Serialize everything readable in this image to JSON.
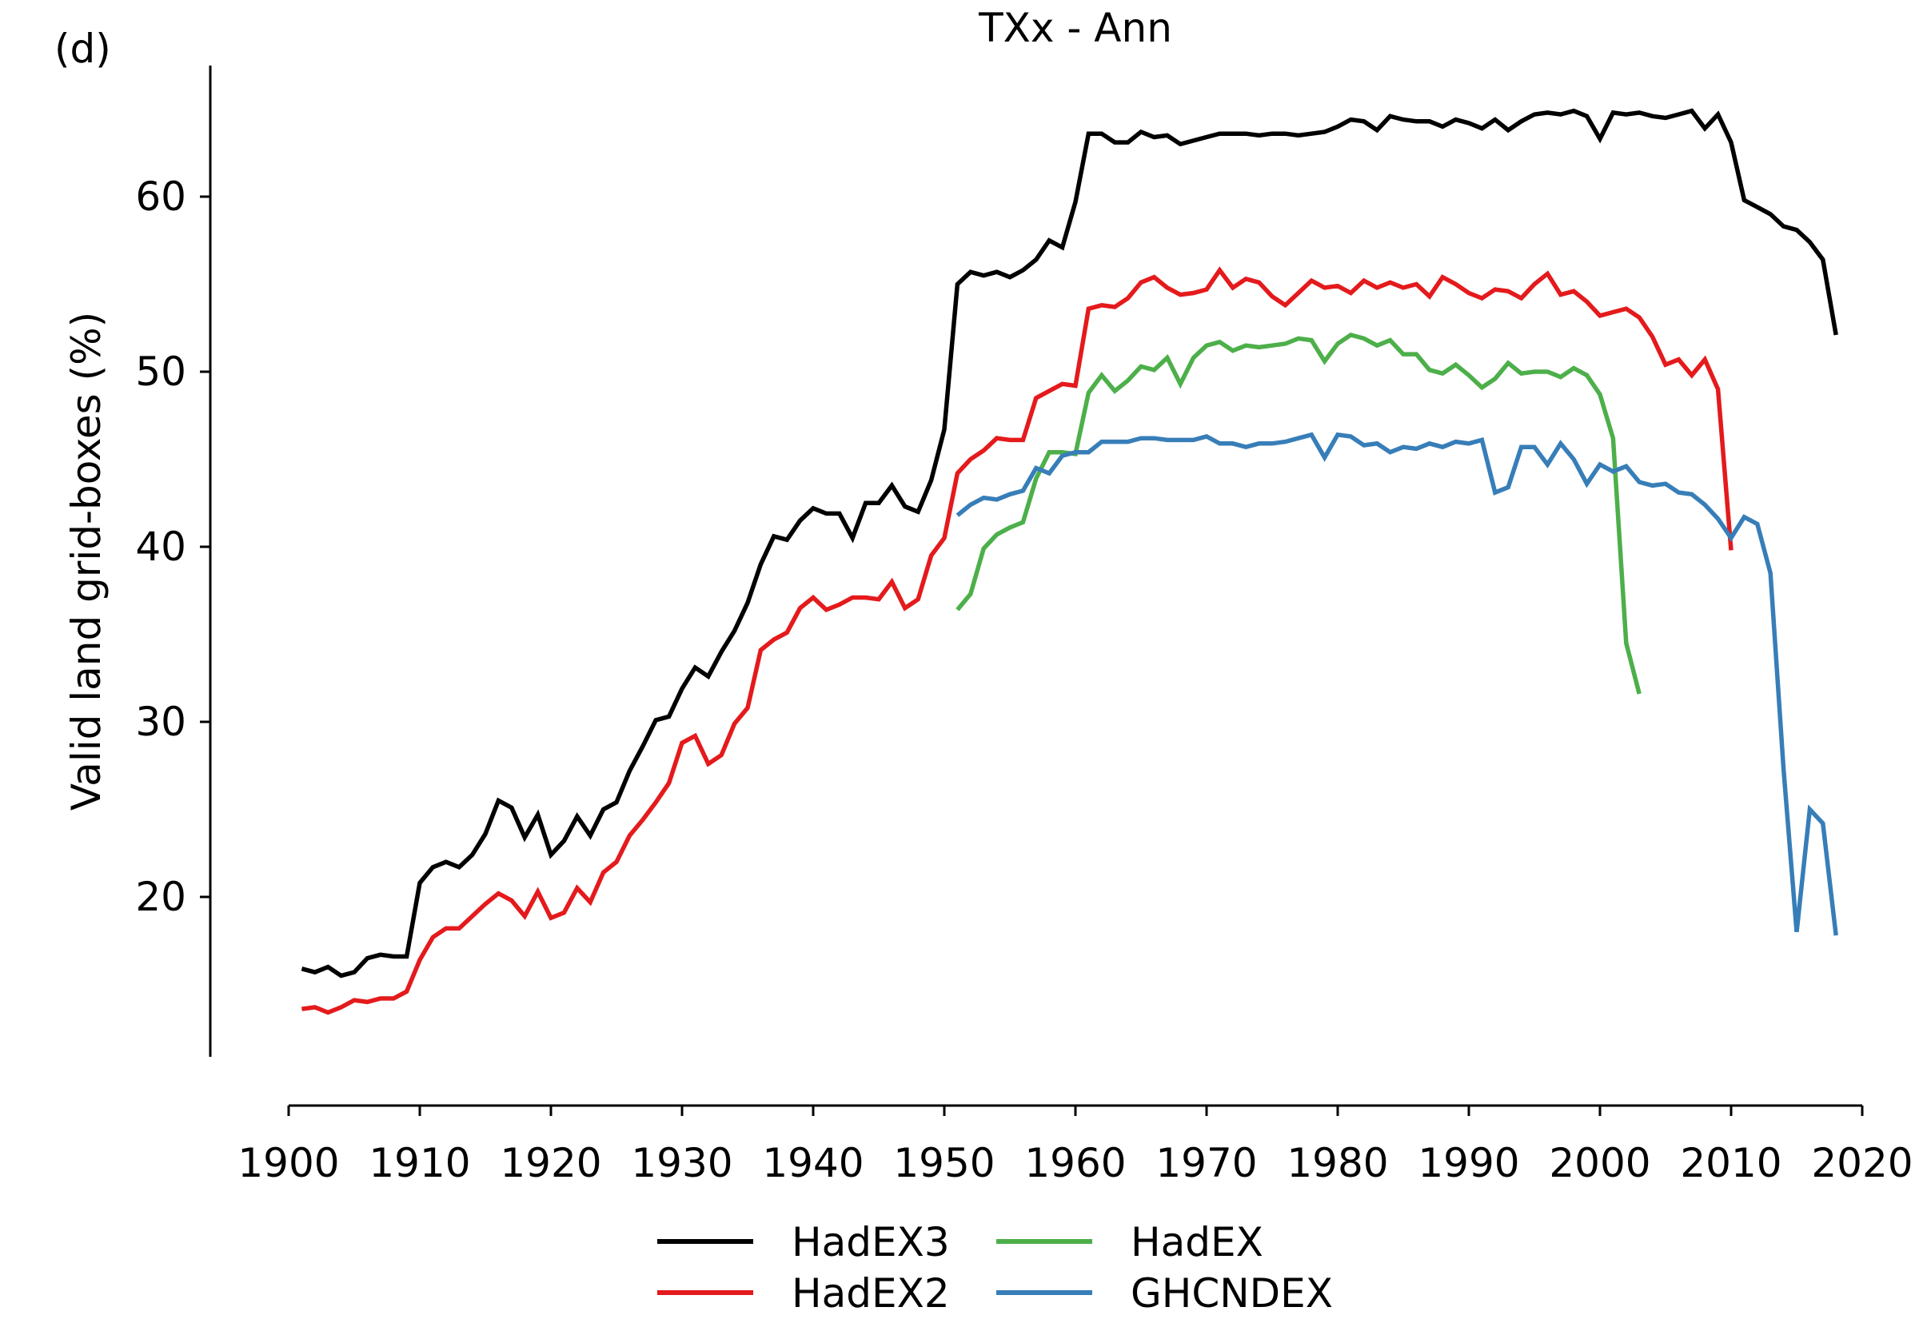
{
  "panel_label": "(d)",
  "chart_data": {
    "type": "line",
    "title": "TXx - Ann",
    "xlabel": "",
    "ylabel": "Valid land grid-boxes (%)",
    "xlim": [
      1900,
      2020
    ],
    "ylim": [
      12,
      67
    ],
    "xticks": [
      1900,
      1910,
      1920,
      1930,
      1940,
      1950,
      1960,
      1970,
      1980,
      1990,
      2000,
      2010,
      2020
    ],
    "yticks": [
      20,
      30,
      40,
      50,
      60
    ],
    "grid": false,
    "legend": {
      "placement": "bottom-center",
      "columns": 2
    },
    "series": [
      {
        "name": "HadEX3",
        "color": "#000000",
        "x": [
          1901,
          1902,
          1903,
          1904,
          1905,
          1906,
          1907,
          1908,
          1909,
          1910,
          1911,
          1912,
          1913,
          1914,
          1915,
          1916,
          1917,
          1918,
          1919,
          1920,
          1921,
          1922,
          1923,
          1924,
          1925,
          1926,
          1927,
          1928,
          1929,
          1930,
          1931,
          1932,
          1933,
          1934,
          1935,
          1936,
          1937,
          1938,
          1939,
          1940,
          1941,
          1942,
          1943,
          1944,
          1945,
          1946,
          1947,
          1948,
          1949,
          1950,
          1951,
          1952,
          1953,
          1954,
          1955,
          1956,
          1957,
          1958,
          1959,
          1960,
          1961,
          1962,
          1963,
          1964,
          1965,
          1966,
          1967,
          1968,
          1969,
          1970,
          1971,
          1972,
          1973,
          1974,
          1975,
          1976,
          1977,
          1978,
          1979,
          1980,
          1981,
          1982,
          1983,
          1984,
          1985,
          1986,
          1987,
          1988,
          1989,
          1990,
          1991,
          1992,
          1993,
          1994,
          1995,
          1996,
          1997,
          1998,
          1999,
          2000,
          2001,
          2002,
          2003,
          2004,
          2005,
          2006,
          2007,
          2008,
          2009,
          2010,
          2011,
          2012,
          2013,
          2014,
          2015,
          2016,
          2017,
          2018
        ],
        "values": [
          15.9,
          15.7,
          16.0,
          15.5,
          15.7,
          16.5,
          16.7,
          16.6,
          16.6,
          20.8,
          21.7,
          22.0,
          21.7,
          22.4,
          23.6,
          25.5,
          25.1,
          23.4,
          24.7,
          22.4,
          23.2,
          24.6,
          23.5,
          25.0,
          25.4,
          27.2,
          28.6,
          30.1,
          30.3,
          31.9,
          33.1,
          32.6,
          34.0,
          35.2,
          36.8,
          39.0,
          40.6,
          40.4,
          41.5,
          42.2,
          41.9,
          41.9,
          40.5,
          42.5,
          42.5,
          43.5,
          42.3,
          42.0,
          43.8,
          46.7,
          55.0,
          55.7,
          55.5,
          55.7,
          55.4,
          55.8,
          56.4,
          57.5,
          57.1,
          59.7,
          63.6,
          63.6,
          63.1,
          63.1,
          63.7,
          63.4,
          63.5,
          63.0,
          63.2,
          63.4,
          63.6,
          63.6,
          63.6,
          63.5,
          63.6,
          63.6,
          63.5,
          63.6,
          63.7,
          64.0,
          64.4,
          64.3,
          63.8,
          64.6,
          64.4,
          64.3,
          64.3,
          64.0,
          64.4,
          64.2,
          63.9,
          64.4,
          63.8,
          64.3,
          64.7,
          64.8,
          64.7,
          64.9,
          64.6,
          63.3,
          64.8,
          64.7,
          64.8,
          64.6,
          64.5,
          64.7,
          64.9,
          63.9,
          64.7,
          63.1,
          59.8,
          59.4,
          59.0,
          58.3,
          58.1,
          57.4,
          56.4,
          52.1
        ]
      },
      {
        "name": "HadEX2",
        "color": "#e41a1c",
        "x": [
          1901,
          1902,
          1903,
          1904,
          1905,
          1906,
          1907,
          1908,
          1909,
          1910,
          1911,
          1912,
          1913,
          1914,
          1915,
          1916,
          1917,
          1918,
          1919,
          1920,
          1921,
          1922,
          1923,
          1924,
          1925,
          1926,
          1927,
          1928,
          1929,
          1930,
          1931,
          1932,
          1933,
          1934,
          1935,
          1936,
          1937,
          1938,
          1939,
          1940,
          1941,
          1942,
          1943,
          1944,
          1945,
          1946,
          1947,
          1948,
          1949,
          1950,
          1951,
          1952,
          1953,
          1954,
          1955,
          1956,
          1957,
          1958,
          1959,
          1960,
          1961,
          1962,
          1963,
          1964,
          1965,
          1966,
          1967,
          1968,
          1969,
          1970,
          1971,
          1972,
          1973,
          1974,
          1975,
          1976,
          1977,
          1978,
          1979,
          1980,
          1981,
          1982,
          1983,
          1984,
          1985,
          1986,
          1987,
          1988,
          1989,
          1990,
          1991,
          1992,
          1993,
          1994,
          1995,
          1996,
          1997,
          1998,
          1999,
          2000,
          2001,
          2002,
          2003,
          2004,
          2005,
          2006,
          2007,
          2008,
          2009,
          2010
        ],
        "values": [
          13.6,
          13.7,
          13.4,
          13.7,
          14.1,
          14.0,
          14.2,
          14.2,
          14.6,
          16.4,
          17.7,
          18.2,
          18.2,
          18.9,
          19.6,
          20.2,
          19.8,
          18.9,
          20.3,
          18.8,
          19.1,
          20.5,
          19.7,
          21.4,
          22.0,
          23.5,
          24.4,
          25.4,
          26.5,
          28.8,
          29.2,
          27.6,
          28.1,
          29.9,
          30.8,
          34.1,
          34.7,
          35.1,
          36.5,
          37.1,
          36.4,
          36.7,
          37.1,
          37.1,
          37.0,
          38.0,
          36.5,
          37.0,
          39.5,
          40.5,
          44.2,
          45.0,
          45.5,
          46.2,
          46.1,
          46.1,
          48.5,
          48.9,
          49.3,
          49.2,
          53.6,
          53.8,
          53.7,
          54.2,
          55.1,
          55.4,
          54.8,
          54.4,
          54.5,
          54.7,
          55.8,
          54.8,
          55.3,
          55.1,
          54.3,
          53.8,
          54.5,
          55.2,
          54.8,
          54.9,
          54.5,
          55.2,
          54.8,
          55.1,
          54.8,
          55.0,
          54.3,
          55.4,
          55.0,
          54.5,
          54.2,
          54.7,
          54.6,
          54.2,
          55.0,
          55.6,
          54.4,
          54.6,
          54.0,
          53.2,
          53.4,
          53.6,
          53.1,
          52.0,
          50.4,
          50.7,
          49.8,
          50.7,
          49.0,
          39.8
        ]
      },
      {
        "name": "HadEX",
        "color": "#4daf4a",
        "x": [
          1951,
          1952,
          1953,
          1954,
          1955,
          1956,
          1957,
          1958,
          1959,
          1960,
          1961,
          1962,
          1963,
          1964,
          1965,
          1966,
          1967,
          1968,
          1969,
          1970,
          1971,
          1972,
          1973,
          1974,
          1975,
          1976,
          1977,
          1978,
          1979,
          1980,
          1981,
          1982,
          1983,
          1984,
          1985,
          1986,
          1987,
          1988,
          1989,
          1990,
          1991,
          1992,
          1993,
          1994,
          1995,
          1996,
          1997,
          1998,
          1999,
          2000,
          2001,
          2002,
          2003
        ],
        "values": [
          36.4,
          37.3,
          39.9,
          40.7,
          41.1,
          41.4,
          43.9,
          45.4,
          45.4,
          45.3,
          48.8,
          49.8,
          48.9,
          49.5,
          50.3,
          50.1,
          50.8,
          49.3,
          50.8,
          51.5,
          51.7,
          51.2,
          51.5,
          51.4,
          51.5,
          51.6,
          51.9,
          51.8,
          50.6,
          51.6,
          52.1,
          51.9,
          51.5,
          51.8,
          51.0,
          51.0,
          50.1,
          49.9,
          50.4,
          49.8,
          49.1,
          49.6,
          50.5,
          49.9,
          50.0,
          50.0,
          49.7,
          50.2,
          49.8,
          48.7,
          46.2,
          34.5,
          31.6
        ]
      },
      {
        "name": "GHCNDEX",
        "color": "#377eb8",
        "x": [
          1951,
          1952,
          1953,
          1954,
          1955,
          1956,
          1957,
          1958,
          1959,
          1960,
          1961,
          1962,
          1963,
          1964,
          1965,
          1966,
          1967,
          1968,
          1969,
          1970,
          1971,
          1972,
          1973,
          1974,
          1975,
          1976,
          1977,
          1978,
          1979,
          1980,
          1981,
          1982,
          1983,
          1984,
          1985,
          1986,
          1987,
          1988,
          1989,
          1990,
          1991,
          1992,
          1993,
          1994,
          1995,
          1996,
          1997,
          1998,
          1999,
          2000,
          2001,
          2002,
          2003,
          2004,
          2005,
          2006,
          2007,
          2008,
          2009,
          2010,
          2011,
          2012,
          2013,
          2014,
          2015,
          2016,
          2017,
          2018
        ],
        "values": [
          41.8,
          42.4,
          42.8,
          42.7,
          43.0,
          43.2,
          44.5,
          44.2,
          45.2,
          45.4,
          45.4,
          46.0,
          46.0,
          46.0,
          46.2,
          46.2,
          46.1,
          46.1,
          46.1,
          46.3,
          45.9,
          45.9,
          45.7,
          45.9,
          45.9,
          46.0,
          46.2,
          46.4,
          45.1,
          46.4,
          46.3,
          45.8,
          45.9,
          45.4,
          45.7,
          45.6,
          45.9,
          45.7,
          46.0,
          45.9,
          46.1,
          43.1,
          43.4,
          45.7,
          45.7,
          44.7,
          45.9,
          45.0,
          43.6,
          44.7,
          44.3,
          44.6,
          43.7,
          43.5,
          43.6,
          43.1,
          43.0,
          42.4,
          41.6,
          40.5,
          41.7,
          41.3,
          38.5,
          27.3,
          18.0,
          25.0,
          24.2,
          17.8
        ]
      }
    ]
  }
}
